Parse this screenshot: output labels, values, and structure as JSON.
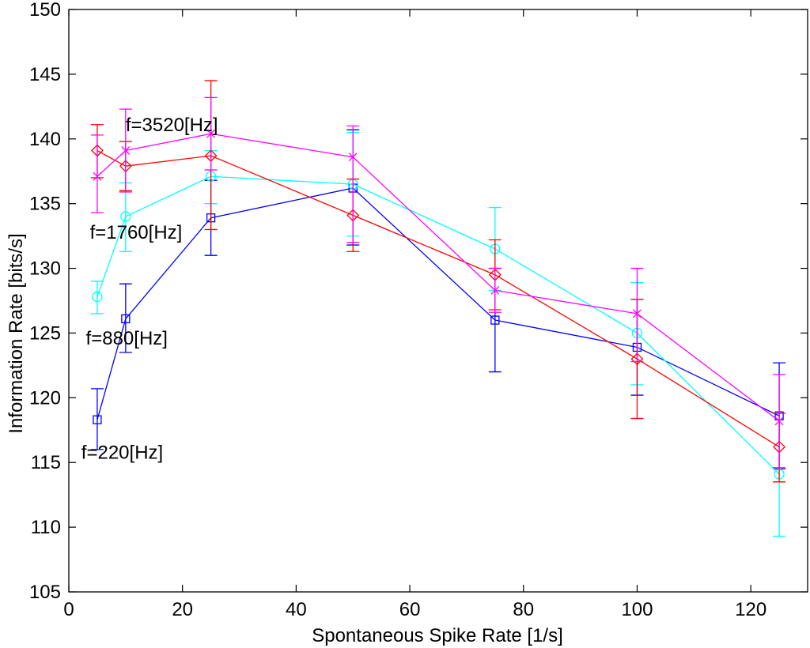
{
  "chart_data": {
    "type": "line",
    "title": "",
    "xlabel": "Spontaneous Spike Rate [1/s]",
    "ylabel": "Information Rate [bits/s]",
    "xlim": [
      0,
      130
    ],
    "ylim": [
      105,
      150
    ],
    "xticks": [
      0,
      20,
      40,
      60,
      80,
      100,
      120
    ],
    "yticks": [
      105,
      110,
      115,
      120,
      125,
      130,
      135,
      140,
      145,
      150
    ],
    "grid": false,
    "x": [
      5,
      10,
      25,
      50,
      75,
      100,
      125
    ],
    "series": [
      {
        "name": "f=220[Hz]",
        "color": "#0000ff",
        "marker": "square",
        "values": [
          118.3,
          126.1,
          133.9,
          136.2,
          126.0,
          123.9,
          118.6
        ],
        "err_low": [
          116.0,
          123.5,
          131.0,
          131.8,
          122.0,
          120.2,
          114.5
        ],
        "err_high": [
          120.7,
          128.8,
          136.8,
          140.7,
          130.0,
          127.6,
          122.7
        ]
      },
      {
        "name": "f=880[Hz]",
        "color": "#00ffff",
        "marker": "circle",
        "values": [
          127.8,
          134.0,
          137.1,
          136.5,
          131.5,
          125.0,
          114.1
        ],
        "err_low": [
          126.5,
          131.3,
          135.0,
          132.5,
          128.3,
          121.0,
          109.3
        ],
        "err_high": [
          129.0,
          136.6,
          139.1,
          140.5,
          134.7,
          128.9,
          118.8
        ]
      },
      {
        "name": "f=1760[Hz]",
        "color": "#ff0000",
        "marker": "diamond",
        "values": [
          139.1,
          137.9,
          138.7,
          134.1,
          129.5,
          123.0,
          116.2
        ],
        "err_low": [
          137.0,
          136.0,
          133.0,
          131.3,
          126.8,
          118.4,
          113.5
        ],
        "err_high": [
          141.1,
          139.8,
          144.5,
          136.9,
          132.2,
          127.6,
          118.8
        ]
      },
      {
        "name": "f=3520[Hz]",
        "color": "#ff00ff",
        "marker": "x",
        "values": [
          137.1,
          139.1,
          140.4,
          138.6,
          128.3,
          126.5,
          118.2
        ],
        "err_low": [
          134.3,
          135.9,
          137.6,
          132.0,
          126.6,
          122.8,
          114.6
        ],
        "err_high": [
          140.3,
          142.3,
          143.2,
          141.0,
          130.0,
          130.0,
          121.8
        ]
      }
    ],
    "annotations": [
      {
        "text": "f=3520[Hz]",
        "x": 10,
        "y": 140.6
      },
      {
        "text": "f=1760[Hz]",
        "x": 3.7,
        "y": 132.3
      },
      {
        "text": "f=880[Hz]",
        "x": 3.0,
        "y": 124.1
      },
      {
        "text": "f=220[Hz]",
        "x": 2.2,
        "y": 115.3
      }
    ]
  }
}
